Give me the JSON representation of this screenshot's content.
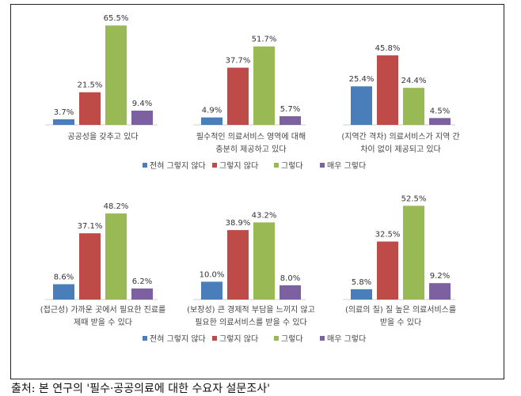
{
  "legend": [
    "전혀 그렇지 않다",
    "그렇지 않다",
    "그렇다",
    "매우 그렇다"
  ],
  "colors": [
    "#4a7ebb",
    "#be4b48",
    "#98b954",
    "#7d60a0"
  ],
  "source": "출처: 본 연구의 '필수·공공의료에 대한 수요자 설문조사'",
  "chart_data": [
    {
      "type": "bar",
      "row": 1,
      "category_lines": [
        "공공성을 갖추고 있다"
      ],
      "values": [
        3.7,
        21.5,
        65.5,
        9.4
      ]
    },
    {
      "type": "bar",
      "row": 1,
      "category_lines": [
        "필수적인 의료서비스 영역에 대해",
        "충분히 제공하고 있다"
      ],
      "values": [
        4.9,
        37.7,
        51.7,
        5.7
      ]
    },
    {
      "type": "bar",
      "row": 1,
      "category_lines": [
        "(지역간 격차) 의료서비스가 지역 간",
        "차이 없이 제공되고 있다"
      ],
      "values": [
        25.4,
        45.8,
        24.4,
        4.5
      ]
    },
    {
      "type": "bar",
      "row": 2,
      "category_lines": [
        "(접근성) 가까운 곳에서 필요한 진료를",
        "제때 받을 수 있다"
      ],
      "values": [
        8.6,
        37.1,
        48.2,
        6.2
      ]
    },
    {
      "type": "bar",
      "row": 2,
      "category_lines": [
        "(보장성) 큰 경제적 부담을 느끼지 않고",
        "필요한 의료서비스를 받을 수 있다"
      ],
      "values": [
        10.0,
        38.9,
        43.2,
        8.0
      ]
    },
    {
      "type": "bar",
      "row": 2,
      "category_lines": [
        "(의료의 질) 질 높은 의료서비스를",
        "받을 수 있다"
      ],
      "values": [
        5.8,
        32.5,
        52.5,
        9.2
      ]
    }
  ]
}
